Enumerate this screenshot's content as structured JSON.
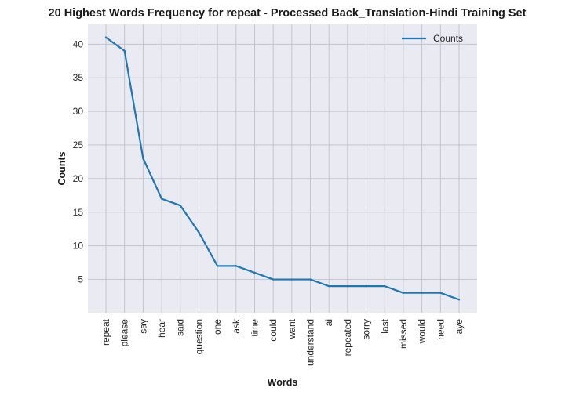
{
  "chart_data": {
    "type": "line",
    "title": "20 Highest Words Frequency for repeat - Processed Back_Translation-Hindi Training Set",
    "xlabel": "Words",
    "ylabel": "Counts",
    "categories": [
      "repeat",
      "please",
      "say",
      "hear",
      "said",
      "question",
      "one",
      "ask",
      "time",
      "could",
      "want",
      "understand",
      "ai",
      "repeated",
      "sorry",
      "last",
      "missed",
      "would",
      "need",
      "aye"
    ],
    "series": [
      {
        "name": "Counts",
        "values": [
          41,
          39,
          23,
          17,
          16,
          12,
          7,
          7,
          6,
          5,
          5,
          5,
          4,
          4,
          4,
          4,
          3,
          3,
          3,
          2
        ]
      }
    ],
    "yticks": [
      5,
      10,
      15,
      20,
      25,
      30,
      35,
      40
    ],
    "ylim": [
      0.05,
      42.95
    ],
    "grid": true,
    "legend": "top-right",
    "colors": {
      "line": "#1f77b4",
      "background": "#eaeaf2",
      "grid": "#c0c0c8"
    }
  }
}
